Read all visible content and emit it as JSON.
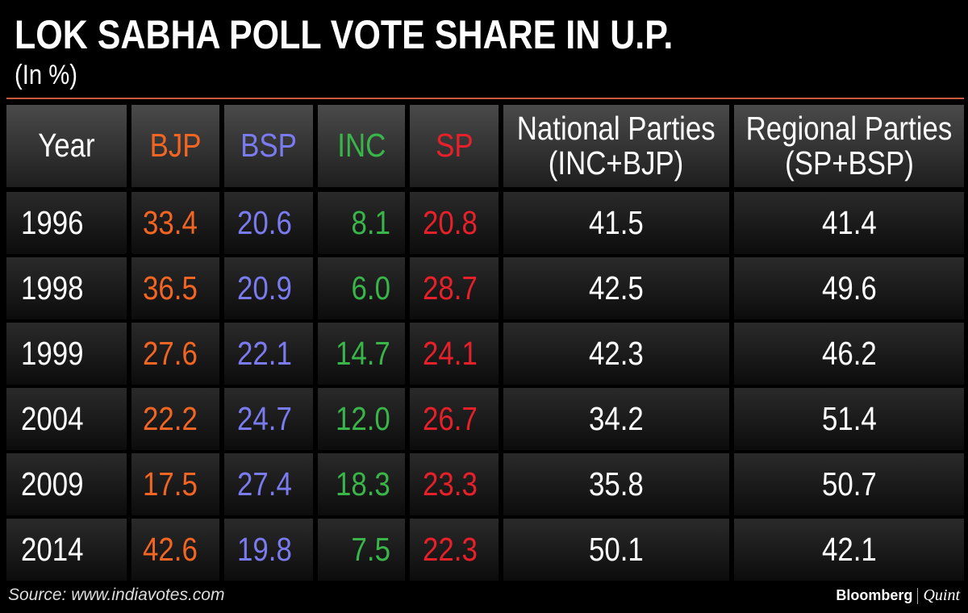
{
  "header": {
    "title": "LOK SABHA POLL VOTE SHARE IN U.P.",
    "subtitle": "(In %)"
  },
  "table": {
    "columns": [
      {
        "label": "Year",
        "color": "#ffffff"
      },
      {
        "label": "BJP",
        "color": "#f26522"
      },
      {
        "label": "BSP",
        "color": "#7b7bf0"
      },
      {
        "label": "INC",
        "color": "#39b54a"
      },
      {
        "label": "SP",
        "color": "#e8202a"
      },
      {
        "label": "National Parties",
        "note": "(INC+BJP)",
        "color": "#ffffff"
      },
      {
        "label": "Regional Parties",
        "note": "(SP+BSP)",
        "color": "#ffffff"
      }
    ],
    "rows": [
      [
        "1996",
        "33.4",
        "20.6",
        "8.1",
        "20.8",
        "41.5",
        "41.4"
      ],
      [
        "1998",
        "36.5",
        "20.9",
        "6.0",
        "28.7",
        "42.5",
        "49.6"
      ],
      [
        "1999",
        "27.6",
        "22.1",
        "14.7",
        "24.1",
        "42.3",
        "46.2"
      ],
      [
        "2004",
        "22.2",
        "24.7",
        "12.0",
        "26.7",
        "34.2",
        "51.4"
      ],
      [
        "2009",
        "17.5",
        "27.4",
        "18.3",
        "23.3",
        "35.8",
        "50.7"
      ],
      [
        "2014",
        "42.6",
        "19.8",
        "7.5",
        "22.3",
        "50.1",
        "42.1"
      ]
    ]
  },
  "footer": {
    "source": "Source: www.indiavotes.com",
    "brand": "Bloomberg",
    "partner": "Quint"
  }
}
